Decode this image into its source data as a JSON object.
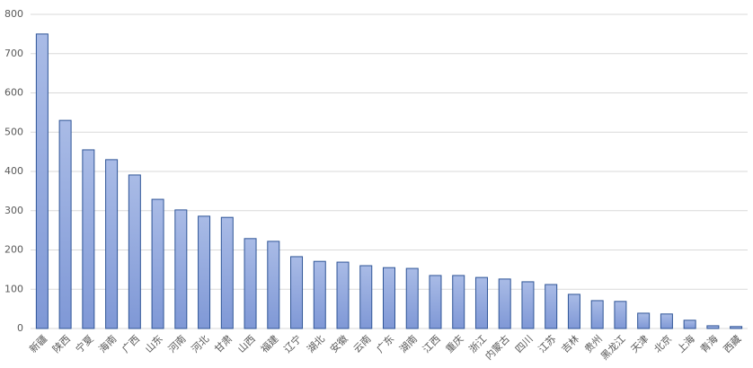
{
  "chart_data": {
    "type": "bar",
    "categories": [
      "新疆",
      "陕西",
      "宁夏",
      "海南",
      "广西",
      "山东",
      "河南",
      "河北",
      "甘肃",
      "山西",
      "福建",
      "辽宁",
      "湖北",
      "安徽",
      "云南",
      "广东",
      "湖南",
      "江西",
      "重庆",
      "浙江",
      "内蒙古",
      "四川",
      "江苏",
      "吉林",
      "贵州",
      "黑龙江",
      "天津",
      "北京",
      "上海",
      "青海",
      "西藏"
    ],
    "values": [
      750,
      530,
      455,
      430,
      391,
      329,
      302,
      286,
      283,
      229,
      222,
      183,
      171,
      169,
      160,
      155,
      153,
      135,
      135,
      130,
      126,
      119,
      112,
      87,
      71,
      69,
      39,
      37,
      21,
      7,
      5
    ],
    "color": "#a9bbe6",
    "edge_color": "#2f5597",
    "ylim": [
      0,
      800
    ],
    "yticks": [
      0,
      100,
      200,
      300,
      400,
      500,
      600,
      700,
      800
    ],
    "grid": true
  }
}
